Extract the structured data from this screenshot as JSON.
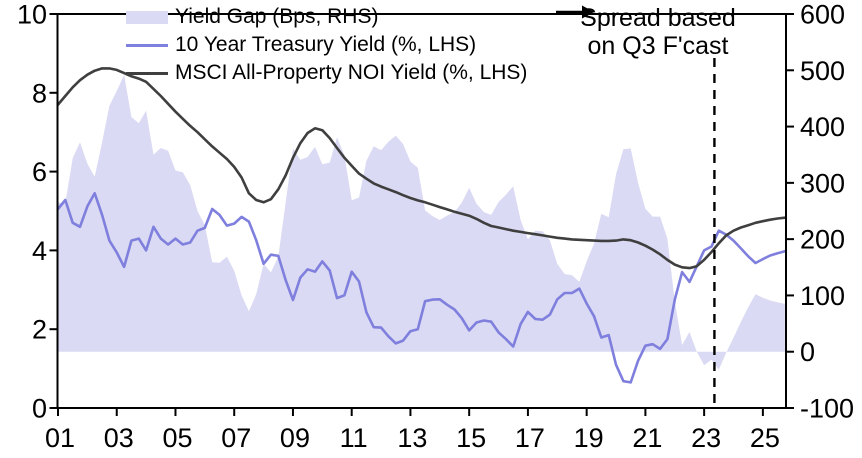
{
  "chart_data": {
    "type": "area+line combo",
    "x_start_year": 2001,
    "x_step_years": 0.25,
    "x_end_year": 2025.75,
    "frequency": "quarterly",
    "left_axis": {
      "min": 0,
      "max": 10,
      "ticks": [
        0,
        2,
        4,
        6,
        8,
        10
      ]
    },
    "right_axis": {
      "min": -100,
      "max": 600,
      "ticks": [
        -100,
        0,
        100,
        200,
        300,
        400,
        500,
        600
      ]
    },
    "x_axis": {
      "tick_years": [
        2001,
        2003,
        2005,
        2007,
        2009,
        2011,
        2013,
        2015,
        2017,
        2019,
        2021,
        2023,
        2025
      ],
      "tick_labels": [
        "01",
        "03",
        "05",
        "07",
        "09",
        "11",
        "13",
        "15",
        "17",
        "19",
        "21",
        "23",
        "25"
      ]
    },
    "forecast_line_year": 2023.35,
    "series": [
      {
        "name": "Yield Gap (Bps, RHS)",
        "type": "area",
        "axis": "right",
        "color": "#dadaf4",
        "values": [
          265,
          264,
          344,
          372,
          334,
          311,
          372,
          437,
          463,
          492,
          417,
          406,
          428,
          350,
          362,
          357,
          322,
          319,
          296,
          250,
          225,
          159,
          158,
          169,
          144,
          100,
          72,
          102,
          156,
          141,
          169,
          265,
          361,
          341,
          346,
          364,
          333,
          336,
          381,
          349,
          269,
          274,
          339,
          365,
          358,
          373,
          384,
          369,
          338,
          327,
          251,
          241,
          234,
          242,
          248,
          265,
          291,
          263,
          248,
          243,
          266,
          279,
          294,
          234,
          200,
          215,
          214,
          198,
          156,
          138,
          136,
          124,
          161,
          192,
          245,
          239,
          315,
          360,
          361,
          300,
          254,
          240,
          240,
          201,
          89,
          12,
          35,
          0,
          -24,
          -14,
          -32,
          -2,
          25,
          53,
          79,
          102,
          96,
          91,
          88,
          85
        ]
      },
      {
        "name": "10 Year Treasury Yield (%, LHS)",
        "type": "line",
        "axis": "left",
        "color": "#7f7fdd",
        "values": [
          5.05,
          5.28,
          4.7,
          4.6,
          5.12,
          5.45,
          4.9,
          4.25,
          3.95,
          3.58,
          4.25,
          4.3,
          4.0,
          4.6,
          4.3,
          4.15,
          4.3,
          4.15,
          4.2,
          4.5,
          4.57,
          5.05,
          4.9,
          4.63,
          4.68,
          4.85,
          4.73,
          4.26,
          3.66,
          3.89,
          3.86,
          3.25,
          2.74,
          3.31,
          3.52,
          3.46,
          3.72,
          3.49,
          2.79,
          2.86,
          3.46,
          3.21,
          2.43,
          2.05,
          2.04,
          1.82,
          1.64,
          1.71,
          1.95,
          2.0,
          2.71,
          2.75,
          2.76,
          2.62,
          2.5,
          2.28,
          1.97,
          2.17,
          2.22,
          2.19,
          1.92,
          1.75,
          1.56,
          2.13,
          2.44,
          2.26,
          2.24,
          2.37,
          2.76,
          2.92,
          2.92,
          3.03,
          2.65,
          2.33,
          1.79,
          1.85,
          1.1,
          0.68,
          0.65,
          1.2,
          1.58,
          1.62,
          1.5,
          1.75,
          2.75,
          3.45,
          3.2,
          3.6,
          4.0,
          4.1,
          4.5,
          4.4,
          4.25,
          4.05,
          3.85,
          3.68,
          3.78,
          3.87,
          3.93,
          3.98
        ]
      },
      {
        "name": "MSCI All-Property NOI Yield (%, LHS)",
        "type": "line",
        "axis": "left",
        "color": "#3f3f3f",
        "values": [
          7.7,
          7.92,
          8.14,
          8.32,
          8.46,
          8.56,
          8.62,
          8.62,
          8.58,
          8.5,
          8.42,
          8.36,
          8.28,
          8.1,
          7.92,
          7.72,
          7.52,
          7.34,
          7.16,
          7.0,
          6.82,
          6.64,
          6.48,
          6.32,
          6.12,
          5.85,
          5.45,
          5.28,
          5.22,
          5.3,
          5.55,
          5.9,
          6.35,
          6.72,
          6.98,
          7.1,
          7.05,
          6.85,
          6.6,
          6.35,
          6.15,
          5.95,
          5.82,
          5.7,
          5.62,
          5.55,
          5.48,
          5.4,
          5.33,
          5.27,
          5.22,
          5.16,
          5.1,
          5.04,
          4.98,
          4.93,
          4.88,
          4.8,
          4.7,
          4.62,
          4.58,
          4.54,
          4.5,
          4.47,
          4.44,
          4.41,
          4.38,
          4.35,
          4.32,
          4.3,
          4.28,
          4.27,
          4.26,
          4.25,
          4.24,
          4.24,
          4.25,
          4.28,
          4.26,
          4.2,
          4.12,
          4.02,
          3.9,
          3.76,
          3.64,
          3.57,
          3.55,
          3.6,
          3.76,
          3.96,
          4.18,
          4.38,
          4.5,
          4.58,
          4.64,
          4.7,
          4.74,
          4.78,
          4.81,
          4.83
        ]
      }
    ]
  },
  "annotation": {
    "line1": "Spread based",
    "line2": "on Q3 F'cast",
    "icon": "right-arrow"
  },
  "colors": {
    "area_fill": "#dadaf4",
    "treasury_line": "#7f7fdd",
    "noi_line": "#3f3f3f",
    "axis": "#000000"
  }
}
